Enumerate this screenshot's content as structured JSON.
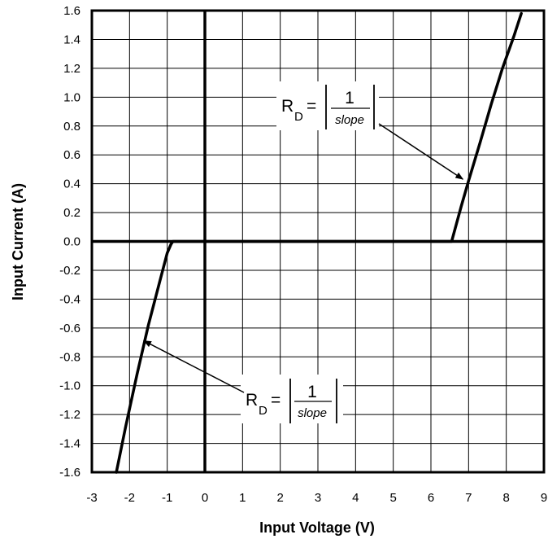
{
  "chart_data": {
    "type": "line",
    "xlabel": "Input Voltage (V)",
    "ylabel": "Input Current (A)",
    "xlim": [
      -3,
      9
    ],
    "ylim": [
      -1.6,
      1.6
    ],
    "x_ticks": [
      "-3",
      "-2",
      "-1",
      "0",
      "1",
      "2",
      "3",
      "4",
      "5",
      "6",
      "7",
      "8",
      "9"
    ],
    "y_ticks": [
      "1.6",
      "1.4",
      "1.2",
      "1.0",
      "0.8",
      "0.6",
      "0.4",
      "0.2",
      "0.0",
      "-0.2",
      "-0.4",
      "-0.6",
      "-0.8",
      "-1.0",
      "-1.2",
      "-1.4",
      "-1.6"
    ],
    "grid": true,
    "series": [
      {
        "x": [
          -2.35,
          -2.1,
          -1.8,
          -1.5,
          -1.2,
          -1.0,
          -0.9,
          -0.85,
          -0.8,
          -0.5,
          0,
          2,
          4,
          6,
          6.55,
          6.8,
          7.0,
          7.3,
          7.6,
          7.9,
          8.2,
          8.4
        ],
        "y": [
          -1.6,
          -1.28,
          -0.92,
          -0.58,
          -0.28,
          -0.08,
          -0.02,
          0.0,
          0.0,
          0.0,
          0.0,
          0.0,
          0.0,
          0.0,
          0.0,
          0.24,
          0.42,
          0.68,
          0.95,
          1.2,
          1.42,
          1.58
        ]
      }
    ],
    "annotations": [
      {
        "lhs": "R",
        "subscript": "D",
        "equals": "=",
        "numerator": "1",
        "denominator": "slope",
        "points_to_x": 7.0,
        "points_to_y": 0.42
      },
      {
        "lhs": "R",
        "subscript": "D",
        "equals": "=",
        "numerator": "1",
        "denominator": "slope",
        "points_to_x": -1.75,
        "points_to_y": -0.7
      }
    ]
  }
}
